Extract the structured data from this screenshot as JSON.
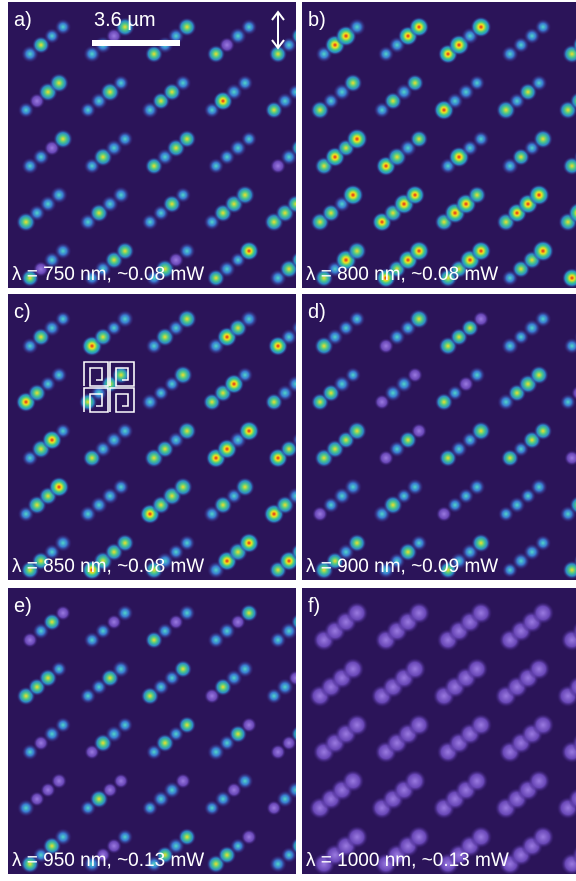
{
  "figure": {
    "scale_bar": "3.6 µm",
    "panels": [
      {
        "label": "a)",
        "caption": "λ = 750 nm, ~0.08 mW"
      },
      {
        "label": "b)",
        "caption": "λ = 800 nm, ~0.08 mW"
      },
      {
        "label": "c)",
        "caption": "λ = 850 nm, ~0.08 mW"
      },
      {
        "label": "d)",
        "caption": "λ = 900 nm, ~0.09 mW"
      },
      {
        "label": "e)",
        "caption": "λ = 950 nm, ~0.13 mW"
      },
      {
        "label": "f)",
        "caption": "λ = 1000 nm, ~0.13 mW"
      }
    ]
  }
}
